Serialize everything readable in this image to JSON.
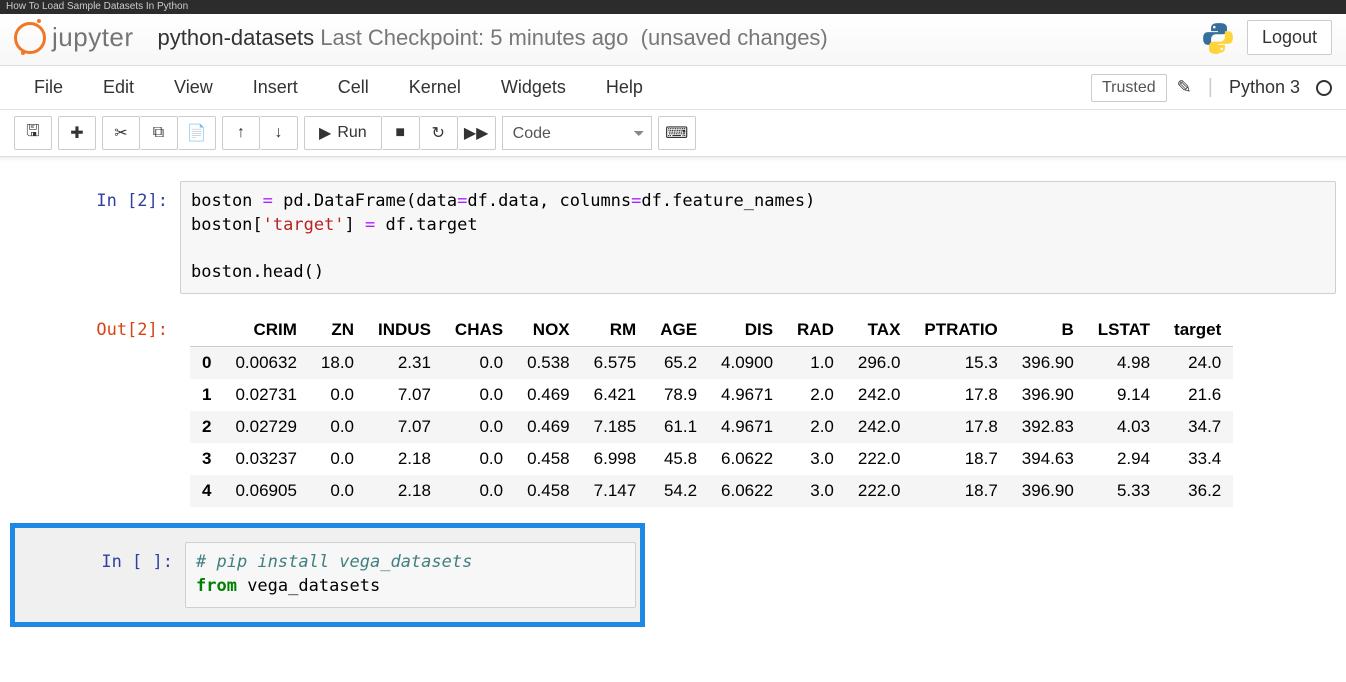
{
  "browser": {
    "tab_title": "How To Load Sample Datasets In Python"
  },
  "header": {
    "logo_text": "jupyter",
    "notebook_name": "python-datasets",
    "checkpoint": "Last Checkpoint: 5 minutes ago",
    "autosave": "(unsaved changes)",
    "logout_label": "Logout"
  },
  "menu": {
    "items": [
      "File",
      "Edit",
      "View",
      "Insert",
      "Cell",
      "Kernel",
      "Widgets",
      "Help"
    ],
    "trusted_label": "Trusted",
    "kernel_name": "Python 3"
  },
  "toolbar": {
    "run_label": "Run",
    "cell_type": "Code"
  },
  "cells": {
    "in2": {
      "prompt": "In [2]:",
      "line1_a": "boston ",
      "line1_op": "=",
      "line1_b": " pd.DataFrame(data",
      "line1_op2": "=",
      "line1_c": "df.data, columns",
      "line1_op3": "=",
      "line1_d": "df.feature_names)",
      "line2_a": "boston[",
      "line2_str": "'target'",
      "line2_b": "] ",
      "line2_op": "=",
      "line2_c": " df.target",
      "line4": "boston.head()"
    },
    "out2": {
      "prompt": "Out[2]:"
    },
    "in_blank": {
      "prompt": "In [ ]:",
      "comment": "# pip install vega_datasets",
      "kw": "from",
      "rest": " vega_datasets"
    }
  },
  "dataframe": {
    "columns": [
      "",
      "CRIM",
      "ZN",
      "INDUS",
      "CHAS",
      "NOX",
      "RM",
      "AGE",
      "DIS",
      "RAD",
      "TAX",
      "PTRATIO",
      "B",
      "LSTAT",
      "target"
    ],
    "rows": [
      [
        "0",
        "0.00632",
        "18.0",
        "2.31",
        "0.0",
        "0.538",
        "6.575",
        "65.2",
        "4.0900",
        "1.0",
        "296.0",
        "15.3",
        "396.90",
        "4.98",
        "24.0"
      ],
      [
        "1",
        "0.02731",
        "0.0",
        "7.07",
        "0.0",
        "0.469",
        "6.421",
        "78.9",
        "4.9671",
        "2.0",
        "242.0",
        "17.8",
        "396.90",
        "9.14",
        "21.6"
      ],
      [
        "2",
        "0.02729",
        "0.0",
        "7.07",
        "0.0",
        "0.469",
        "7.185",
        "61.1",
        "4.9671",
        "2.0",
        "242.0",
        "17.8",
        "392.83",
        "4.03",
        "34.7"
      ],
      [
        "3",
        "0.03237",
        "0.0",
        "2.18",
        "0.0",
        "0.458",
        "6.998",
        "45.8",
        "6.0622",
        "3.0",
        "222.0",
        "18.7",
        "394.63",
        "2.94",
        "33.4"
      ],
      [
        "4",
        "0.06905",
        "0.0",
        "2.18",
        "0.0",
        "0.458",
        "7.147",
        "54.2",
        "6.0622",
        "3.0",
        "222.0",
        "18.7",
        "396.90",
        "5.33",
        "36.2"
      ]
    ],
    "style": {
      "font_size": 17,
      "header_border_color": "#cccccc",
      "odd_row_bg": "#f5f5f5",
      "even_row_bg": "#ffffff",
      "cell_align": "right"
    }
  },
  "colors": {
    "jupyter_orange": "#f37626",
    "in_prompt": "#303F9F",
    "out_prompt": "#D84315",
    "selection_blue": "#1e88e5",
    "code_string": "#ba2121",
    "code_comment": "#408080",
    "code_keyword": "#008000",
    "python_blue": "#366e9c",
    "python_yellow": "#ffd43b"
  }
}
